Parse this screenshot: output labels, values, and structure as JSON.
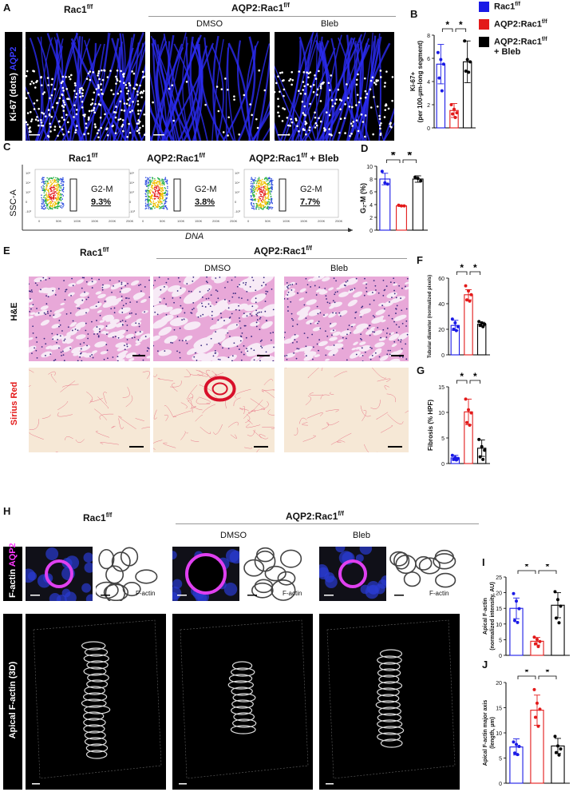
{
  "labels": {
    "A": "A",
    "B": "B",
    "C": "C",
    "D": "D",
    "E": "E",
    "F": "F",
    "G": "G",
    "H": "H",
    "I": "I",
    "J": "J"
  },
  "common": {
    "rac1": "Rac1",
    "aqp2rac1": "AQP2:Rac1",
    "sup": "f/f",
    "dmso": "DMSO",
    "bleb": "Bleb",
    "aqp2rac1_bleb": "AQP2:Rac1",
    "plus_bleb": "+ Bleb"
  },
  "panelA": {
    "row_label_a": "Ki-67 (dots)",
    "row_label_b": "AQP2"
  },
  "legend": {
    "items": [
      {
        "label": "Rac1",
        "sup": "f/f",
        "extra": "",
        "color": "#1a1ae6"
      },
      {
        "label": "AQP2:Rac1",
        "sup": "f/f",
        "extra": "",
        "color": "#e31a1a"
      },
      {
        "label": "AQP2:Rac1",
        "sup": "f/f",
        "extra": "+ Bleb",
        "color": "#000000"
      }
    ]
  },
  "panelC": {
    "yaxis": "SSC-A",
    "xaxis": "DNA",
    "titles": [
      "Rac1",
      "AQP2:Rac1",
      "AQP2:Rac1"
    ],
    "title_suffix": [
      "",
      "",
      "+ Bleb"
    ],
    "gate_label": "G",
    "gate_sub": "2",
    "gate_rest": "-M",
    "percents": [
      "9.3%",
      "3.8%",
      "7.7%"
    ],
    "xticks": [
      "0",
      "50K",
      "100K",
      "150K",
      "200K",
      "250K"
    ],
    "yticks": [
      "10⁵",
      "10⁴",
      "10³",
      "0",
      "-10³"
    ]
  },
  "panelE": {
    "row1": "H&E",
    "row2": "Sirius Red"
  },
  "panelH": {
    "row1a": "F-actin",
    "row1b": "AQP2",
    "row2": "Apical F-actin (3D)",
    "factin": "F-actin"
  },
  "chart_data": [
    {
      "id": "B",
      "type": "bar",
      "ylabel": "Ki-67+",
      "ylabel2": "(per 100-µm-long segment)",
      "ylim": [
        0,
        8
      ],
      "yticks": [
        "0",
        "2",
        "4",
        "6",
        "8"
      ],
      "categories": [
        "Rac1 f/f",
        "AQP2:Rac1 f/f",
        "AQP2:Rac1 f/f + Bleb"
      ],
      "values": [
        5.5,
        1.5,
        5.7
      ],
      "errors": [
        1.7,
        0.6,
        1.8
      ],
      "points": [
        [
          6.5,
          5.9,
          5.5,
          4.3,
          3.2
        ],
        [
          2.0,
          1.6,
          1.3,
          1.2,
          0.9
        ],
        [
          7.5,
          5.9,
          5.7,
          4.9,
          4.8
        ]
      ],
      "sig": [
        [
          "*",
          0,
          1
        ],
        [
          "*",
          1,
          2
        ]
      ]
    },
    {
      "id": "D",
      "type": "bar",
      "ylabel": "G₂-M (%)",
      "ylim": [
        0,
        10
      ],
      "yticks": [
        "0",
        "2",
        "4",
        "6",
        "8",
        "10"
      ],
      "categories": [
        "Rac1 f/f",
        "AQP2:Rac1 f/f",
        "AQP2:Rac1 f/f + Bleb"
      ],
      "values": [
        8.0,
        3.8,
        8.0
      ],
      "errors": [
        0.9,
        0.1,
        0.5
      ],
      "points": [
        [
          9.2,
          7.4,
          7.2
        ],
        [
          3.9,
          3.8,
          3.8
        ],
        [
          8.3,
          8.1,
          7.7
        ]
      ],
      "sig": [
        [
          "*",
          0,
          1
        ],
        [
          "*",
          1,
          2
        ]
      ]
    },
    {
      "id": "F",
      "type": "bar",
      "ylabel": "Tubular diameter (normalized pixels)",
      "ylim": [
        0,
        60
      ],
      "yticks": [
        "0",
        "20",
        "40",
        "60"
      ],
      "categories": [
        "Rac1 f/f",
        "AQP2:Rac1 f/f",
        "AQP2:Rac1 f/f + Bleb"
      ],
      "values": [
        23,
        47,
        24
      ],
      "errors": [
        4,
        4,
        1.5
      ],
      "points": [
        [
          28,
          25,
          22,
          20,
          19
        ],
        [
          54,
          50,
          47,
          43,
          42
        ],
        [
          26,
          25,
          24,
          23,
          22
        ]
      ],
      "sig": [
        [
          "*",
          0,
          1
        ],
        [
          "*",
          1,
          2
        ]
      ]
    },
    {
      "id": "G",
      "type": "bar",
      "ylabel": "Fibrosis (% HPF)",
      "ylim": [
        0,
        15
      ],
      "yticks": [
        "0",
        "5",
        "10",
        "15"
      ],
      "categories": [
        "Rac1 f/f",
        "AQP2:Rac1 f/f",
        "AQP2:Rac1 f/f + Bleb"
      ],
      "values": [
        1.1,
        10.1,
        3.0
      ],
      "errors": [
        0.5,
        2.5,
        1.6
      ],
      "points": [
        [
          1.6,
          1.2,
          1.0,
          0.8,
          0.7
        ],
        [
          12.6,
          10.5,
          9.9,
          8.0,
          7.5
        ],
        [
          4.7,
          3.3,
          2.6,
          1.3,
          0.8
        ]
      ],
      "sig": [
        [
          "*",
          0,
          1
        ],
        [
          "*",
          1,
          2
        ]
      ]
    },
    {
      "id": "I",
      "type": "bar",
      "ylabel": "Apical F-actin",
      "ylabel2": "(normalized intensity, AU)",
      "ylim": [
        0,
        25
      ],
      "yticks": [
        "0",
        "5",
        "10",
        "15",
        "20",
        "25"
      ],
      "categories": [
        "Rac1 f/f",
        "AQP2:Rac1 f/f",
        "AQP2:Rac1 f/f + Bleb"
      ],
      "values": [
        15,
        4.5,
        16
      ],
      "errors": [
        3.3,
        1.2,
        4
      ],
      "points": [
        [
          19.7,
          17.3,
          14.9,
          11.1,
          10.5
        ],
        [
          5.8,
          5.1,
          4.4,
          3.7,
          2.8
        ],
        [
          20.3,
          17.8,
          15.7,
          11.9,
          10.4
        ]
      ],
      "sig": [
        [
          "*",
          0,
          1
        ],
        [
          "*",
          1,
          2
        ]
      ]
    },
    {
      "id": "J",
      "type": "bar",
      "ylabel": "Apical F-actin major axis",
      "ylabel2": "(length, µm)",
      "ylim": [
        0,
        20
      ],
      "yticks": [
        "0",
        "5",
        "10",
        "15",
        "20"
      ],
      "categories": [
        "Rac1 f/f",
        "AQP2:Rac1 f/f",
        "AQP2:Rac1 f/f + Bleb"
      ],
      "values": [
        7.2,
        14.5,
        7.4
      ],
      "errors": [
        1.6,
        3,
        1.5
      ],
      "points": [
        [
          8.2,
          7.7,
          7.3,
          6.0,
          5.7
        ],
        [
          18.6,
          15.9,
          14.7,
          13.1,
          11.3
        ],
        [
          9.3,
          7.4,
          6.8,
          6.1,
          5.6
        ]
      ],
      "sig": [
        [
          "*",
          0,
          1
        ],
        [
          "*",
          1,
          2
        ]
      ]
    }
  ]
}
